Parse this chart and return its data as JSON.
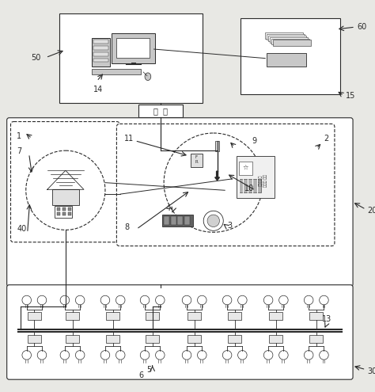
{
  "bg_color": "#e8e8e4",
  "line_color": "#2a2a2a",
  "modem_text": "모  딧",
  "label_50": "50",
  "label_60": "60",
  "label_14": "14",
  "label_15": "15",
  "label_1": "1",
  "label_2": "2",
  "label_3": "3",
  "label_4": "4",
  "label_5": "5",
  "label_6": "6",
  "label_7": "7",
  "label_8": "8",
  "label_9": "9",
  "label_10": "10",
  "label_11": "11",
  "label_13": "13",
  "label_20": "20",
  "label_30": "30",
  "label_40": "40"
}
